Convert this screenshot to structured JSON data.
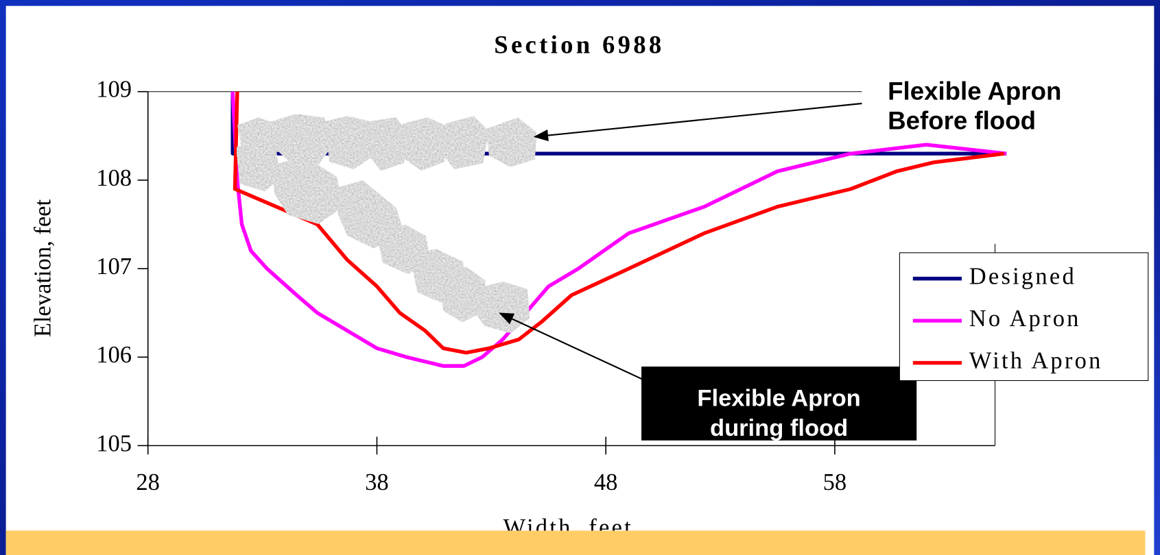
{
  "chart_data": {
    "type": "line",
    "title": "Section 6988",
    "x_label": "Width, feet",
    "y_label": "Elevation, feet",
    "xlim": [
      28,
      65
    ],
    "ylim": [
      105,
      109
    ],
    "xticks": [
      28,
      38,
      48,
      58
    ],
    "yticks": [
      105,
      106,
      107,
      108,
      109
    ],
    "grid": false,
    "legend": "right",
    "series": [
      {
        "name": "Designed",
        "color": "#000080",
        "x": [
          31.7,
          31.7,
          65.5
        ],
        "values": [
          109,
          108.3,
          108.3
        ]
      },
      {
        "name": "No Apron",
        "color": "#ff00ff",
        "x": [
          31.7,
          31.9,
          32.1,
          32.5,
          33.2,
          34.5,
          35.4,
          36.7,
          38.0,
          39.3,
          40.9,
          41.8,
          42.6,
          43.5,
          44.5,
          45.5,
          46.8,
          49.0,
          52.3,
          55.5,
          58.7,
          62.0,
          65.5
        ],
        "values": [
          109,
          108.0,
          107.5,
          107.2,
          107.0,
          106.7,
          106.5,
          106.3,
          106.1,
          106.0,
          105.9,
          105.9,
          106.0,
          106.2,
          106.5,
          106.8,
          107.0,
          107.4,
          107.7,
          108.1,
          108.3,
          108.4,
          108.3
        ]
      },
      {
        "name": "With Apron",
        "color": "#ff0000",
        "x": [
          31.9,
          31.8,
          35.4,
          36.7,
          38.0,
          39.0,
          40.1,
          40.9,
          41.9,
          42.9,
          44.2,
          45.2,
          46.5,
          49.0,
          52.3,
          55.5,
          58.7,
          60.7,
          62.3,
          65.4
        ],
        "values": [
          109,
          107.9,
          107.5,
          107.1,
          106.8,
          106.5,
          106.3,
          106.1,
          106.05,
          106.1,
          106.2,
          106.4,
          106.7,
          107.0,
          107.4,
          107.7,
          107.9,
          108.1,
          108.2,
          108.3
        ]
      }
    ],
    "annotations": [
      {
        "lines": [
          "Flexible Apron",
          "Before flood"
        ]
      },
      {
        "lines": [
          "Flexible Apron",
          "during flood"
        ]
      }
    ]
  }
}
